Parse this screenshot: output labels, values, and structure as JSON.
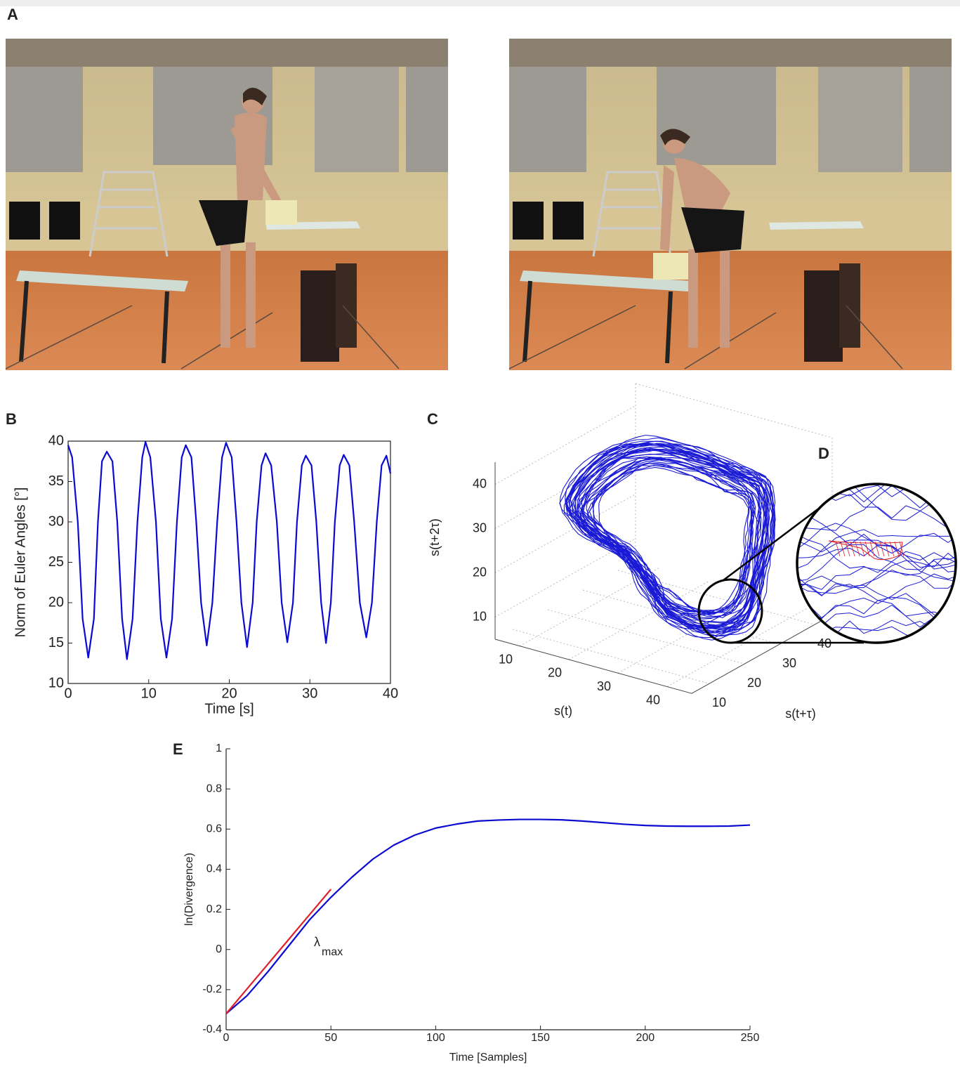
{
  "photo_panel": {
    "label": "A"
  },
  "chart_data": [
    {
      "type": "line",
      "panel": "B",
      "xlabel": "Time [s]",
      "ylabel": "Norm of Euler Angles [°]",
      "xlim": [
        0,
        40
      ],
      "ylim": [
        10,
        40
      ],
      "xticks": [
        0,
        10,
        20,
        30,
        40
      ],
      "yticks": [
        10,
        15,
        20,
        25,
        30,
        35,
        40
      ],
      "x": [
        0,
        0.5,
        1.2,
        1.8,
        2.5,
        3.2,
        3.7,
        4.2,
        4.8,
        5.5,
        6.1,
        6.7,
        7.3,
        8,
        8.6,
        9.2,
        9.6,
        10.2,
        10.9,
        11.5,
        12.2,
        12.9,
        13.5,
        14.1,
        14.6,
        15.3,
        15.9,
        16.5,
        17.2,
        17.9,
        18.5,
        19.1,
        19.6,
        20.3,
        20.9,
        21.5,
        22.2,
        22.9,
        23.4,
        24,
        24.5,
        25.2,
        25.9,
        26.5,
        27.2,
        27.9,
        28.4,
        29,
        29.5,
        30.2,
        30.8,
        31.4,
        32,
        32.6,
        33.1,
        33.7,
        34.2,
        34.9,
        35.5,
        36.2,
        37,
        37.7,
        38.3,
        38.9,
        39.5,
        40
      ],
      "series": [
        {
          "color": "#0a0ad0",
          "values": [
            39.5,
            38,
            30,
            18,
            13.2,
            18,
            30,
            37.5,
            38.7,
            37.5,
            30,
            18,
            13,
            18,
            30,
            38,
            39.9,
            38,
            30,
            18,
            13.2,
            18,
            30,
            38,
            39.5,
            38,
            30,
            20,
            14.7,
            20,
            30,
            38,
            39.8,
            38,
            30,
            20,
            14.5,
            20,
            30,
            37,
            38.5,
            37,
            30,
            20,
            15.1,
            20,
            30,
            37,
            38.2,
            37,
            30,
            20,
            15,
            20,
            30,
            37,
            38.3,
            37,
            30,
            20,
            15.7,
            20,
            30,
            37,
            38.2,
            36
          ]
        }
      ]
    },
    {
      "type": "phase3d",
      "panel": "C",
      "inset_label": "D",
      "xlabel": "s(t)",
      "ylabel": "s(t+τ)",
      "zlabel": "s(t+2τ)",
      "xlim": [
        5,
        45
      ],
      "ylim": [
        5,
        45
      ],
      "zlim": [
        5,
        45
      ],
      "xticks": [
        10,
        20,
        30,
        40
      ],
      "yticks": [
        10,
        20,
        30,
        40
      ],
      "zticks": [
        10,
        20,
        30,
        40
      ],
      "grid": true,
      "color": "#1a1ad6"
    },
    {
      "type": "line",
      "panel": "E",
      "xlabel": "Time [Samples]",
      "ylabel": "ln(Divergence)",
      "annotation": {
        "symbol": "λ",
        "subscript": "max"
      },
      "xlim": [
        0,
        250
      ],
      "ylim": [
        -0.4,
        1
      ],
      "xticks": [
        0,
        50,
        100,
        150,
        200,
        250
      ],
      "yticks": [
        -0.4,
        -0.2,
        0,
        0.2,
        0.4,
        0.6,
        0.8,
        1
      ],
      "x": [
        0,
        10,
        20,
        30,
        40,
        50,
        60,
        70,
        80,
        90,
        100,
        110,
        120,
        130,
        140,
        150,
        160,
        170,
        180,
        190,
        200,
        210,
        220,
        230,
        240,
        250
      ],
      "series": [
        {
          "color": "#0a0ad0",
          "values": [
            -0.32,
            -0.23,
            -0.11,
            0.02,
            0.15,
            0.26,
            0.36,
            0.45,
            0.52,
            0.57,
            0.605,
            0.625,
            0.64,
            0.645,
            0.648,
            0.648,
            0.646,
            0.64,
            0.632,
            0.624,
            0.618,
            0.615,
            0.614,
            0.614,
            0.615,
            0.62
          ]
        },
        {
          "color": "#e0202a",
          "values": [
            -0.32,
            -0.196,
            -0.072,
            0.052,
            0.176,
            0.3,
            null,
            null,
            null,
            null,
            null,
            null,
            null,
            null,
            null,
            null,
            null,
            null,
            null,
            null,
            null,
            null,
            null,
            null,
            null,
            null
          ]
        }
      ]
    }
  ]
}
